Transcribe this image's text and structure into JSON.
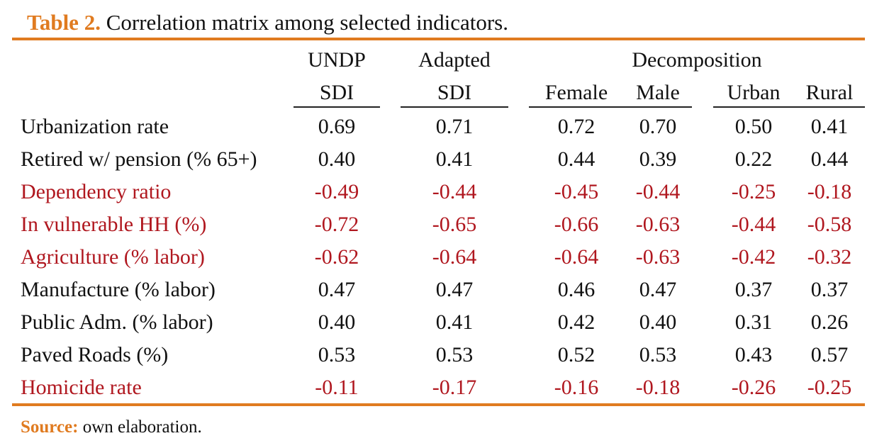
{
  "caption": {
    "number": "Table 2.",
    "text": "Correlation matrix among selected indicators."
  },
  "header": {
    "undp_top": "UNDP",
    "undp_bottom": "SDI",
    "adapted_top": "Adapted",
    "adapted_bottom": "SDI",
    "decomposition": "Decomposition",
    "female": "Female",
    "male": "Male",
    "urban": "Urban",
    "rural": "Rural"
  },
  "rows": [
    {
      "label": "Urbanization rate",
      "values": [
        "0.69",
        "0.71",
        "0.72",
        "0.70",
        "0.50",
        "0.41"
      ],
      "negative": false
    },
    {
      "label": "Retired w/ pension (% 65+)",
      "values": [
        "0.40",
        "0.41",
        "0.44",
        "0.39",
        "0.22",
        "0.44"
      ],
      "negative": false
    },
    {
      "label": "Dependency ratio",
      "values": [
        "-0.49",
        "-0.44",
        "-0.45",
        "-0.44",
        "-0.25",
        "-0.18"
      ],
      "negative": true
    },
    {
      "label": "In vulnerable HH (%)",
      "values": [
        "-0.72",
        "-0.65",
        "-0.66",
        "-0.63",
        "-0.44",
        "-0.58"
      ],
      "negative": true
    },
    {
      "label": "Agriculture (% labor)",
      "values": [
        "-0.62",
        "-0.64",
        "-0.64",
        "-0.63",
        "-0.42",
        "-0.32"
      ],
      "negative": true
    },
    {
      "label": "Manufacture (% labor)",
      "values": [
        "0.47",
        "0.47",
        "0.46",
        "0.47",
        "0.37",
        "0.37"
      ],
      "negative": false
    },
    {
      "label": "Public Adm. (% labor)",
      "values": [
        "0.40",
        "0.41",
        "0.42",
        "0.40",
        "0.31",
        "0.26"
      ],
      "negative": false
    },
    {
      "label": "Paved Roads (%)",
      "values": [
        "0.53",
        "0.53",
        "0.52",
        "0.53",
        "0.43",
        "0.57"
      ],
      "negative": false
    },
    {
      "label": "Homicide rate",
      "values": [
        "-0.11",
        "-0.17",
        "-0.16",
        "-0.18",
        "-0.26",
        "-0.25"
      ],
      "negative": true
    }
  ],
  "source": {
    "label": "Source:",
    "text": " own elaboration."
  },
  "colors": {
    "accent": "#E07B20",
    "negative": "#B0171F",
    "text": "#111111"
  }
}
